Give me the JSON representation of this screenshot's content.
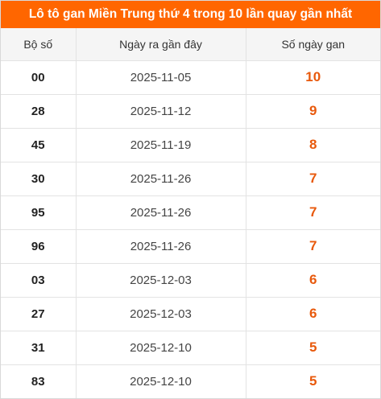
{
  "title": "Lô tô gan Miền Trung thứ 4 trong 10 lần quay gần nhất",
  "colors": {
    "header_bg": "#ff6600",
    "gan_value": "#e8590c"
  },
  "columns": [
    "Bộ số",
    "Ngày ra gần đây",
    "Số ngày gan"
  ],
  "rows": [
    {
      "number": "00",
      "date": "2025-11-05",
      "days": "10"
    },
    {
      "number": "28",
      "date": "2025-11-12",
      "days": "9"
    },
    {
      "number": "45",
      "date": "2025-11-19",
      "days": "8"
    },
    {
      "number": "30",
      "date": "2025-11-26",
      "days": "7"
    },
    {
      "number": "95",
      "date": "2025-11-26",
      "days": "7"
    },
    {
      "number": "96",
      "date": "2025-11-26",
      "days": "7"
    },
    {
      "number": "03",
      "date": "2025-12-03",
      "days": "6"
    },
    {
      "number": "27",
      "date": "2025-12-03",
      "days": "6"
    },
    {
      "number": "31",
      "date": "2025-12-10",
      "days": "5"
    },
    {
      "number": "83",
      "date": "2025-12-10",
      "days": "5"
    }
  ]
}
